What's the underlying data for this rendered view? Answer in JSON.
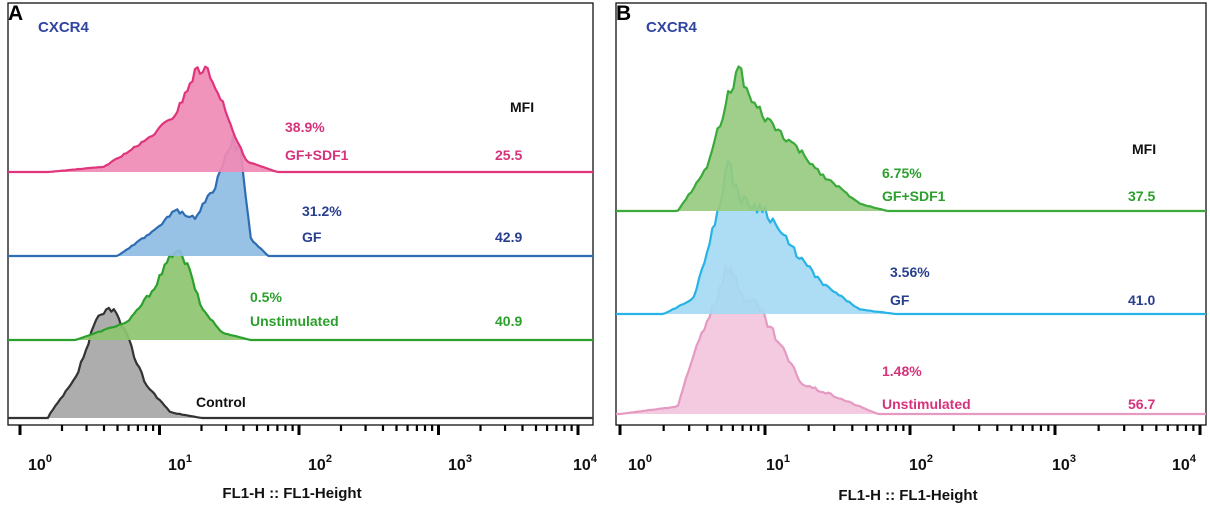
{
  "chart_data": [
    {
      "panel_letter": "A",
      "title": "CXCR4",
      "type": "area",
      "xlabel": "FL1-H :: FL1-Height",
      "xscale": "log",
      "xlim": [
        1,
        10000
      ],
      "x_tick_labels": [
        {
          "base": "10",
          "exp": "0"
        },
        {
          "base": "10",
          "exp": "1"
        },
        {
          "base": "10",
          "exp": "2"
        },
        {
          "base": "10",
          "exp": "3"
        },
        {
          "base": "10",
          "exp": "4"
        }
      ],
      "mfi_header": "MFI",
      "series": [
        {
          "name": "Control",
          "label": "Control",
          "percent": "",
          "mfi": "",
          "fill": "#a6a6a6",
          "stroke": "#333333",
          "label_color": "#111111",
          "peak_x": 4.5,
          "profile_x": [
            1.6,
            2.5,
            3.5,
            4.5,
            5.5,
            8,
            12,
            20
          ],
          "profile_y": [
            0.02,
            0.35,
            0.85,
            1.0,
            0.8,
            0.3,
            0.05,
            0.0
          ]
        },
        {
          "name": "Unstimulated",
          "label": "Unstimulated",
          "percent": "0.5%",
          "mfi": "40.9",
          "fill": "#8dc66f",
          "stroke": "#2ca02c",
          "label_color": "#2ca02c",
          "peak_x": 13,
          "profile_x": [
            2.5,
            6,
            9,
            13,
            16,
            20,
            28,
            45
          ],
          "profile_y": [
            0.0,
            0.2,
            0.55,
            1.0,
            0.8,
            0.35,
            0.08,
            0.0
          ]
        },
        {
          "name": "GF",
          "label": "GF",
          "percent": "31.2%",
          "mfi": "42.9",
          "fill": "#8fbde3",
          "stroke": "#2e6db4",
          "label_color": "#283e8f",
          "peak_x": 33,
          "profile_x": [
            5,
            10,
            13,
            18,
            25,
            33,
            38,
            45,
            60
          ],
          "profile_y": [
            0.0,
            0.25,
            0.4,
            0.33,
            0.6,
            1.0,
            0.9,
            0.15,
            0.0
          ]
        },
        {
          "name": "GF+SDF1",
          "label": "GF+SDF1",
          "percent": "38.9%",
          "mfi": "25.5",
          "fill": "#f08bb6",
          "stroke": "#e0357b",
          "label_color": "#d6337a",
          "peak_x": 20,
          "profile_x": [
            1.6,
            4,
            8,
            13,
            18,
            21,
            26,
            32,
            42,
            70
          ],
          "profile_y": [
            0.0,
            0.05,
            0.3,
            0.55,
            0.95,
            1.0,
            0.8,
            0.45,
            0.1,
            0.0
          ]
        }
      ]
    },
    {
      "panel_letter": "B",
      "title": "CXCR4",
      "type": "area",
      "xlabel": "FL1-H :: FL1-Height",
      "xscale": "log",
      "xlim": [
        1,
        10000
      ],
      "x_tick_labels": [
        {
          "base": "10",
          "exp": "0"
        },
        {
          "base": "10",
          "exp": "1"
        },
        {
          "base": "10",
          "exp": "2"
        },
        {
          "base": "10",
          "exp": "3"
        },
        {
          "base": "10",
          "exp": "4"
        }
      ],
      "mfi_header": "MFI",
      "series": [
        {
          "name": "Unstimulated",
          "label": "Unstimulated",
          "percent": "1.48%",
          "mfi": "56.7",
          "fill": "#f2c6dc",
          "stroke": "#e59ac2",
          "label_color": "#d6337a",
          "peak_x": 5.5,
          "profile_x": [
            1.0,
            2.5,
            3.5,
            4.5,
            5.5,
            7,
            9,
            12,
            18,
            30,
            60
          ],
          "profile_y": [
            0.0,
            0.05,
            0.5,
            0.75,
            1.0,
            0.8,
            0.7,
            0.5,
            0.2,
            0.12,
            0.0
          ]
        },
        {
          "name": "GF",
          "label": "GF",
          "percent": "3.56%",
          "mfi": "41.0",
          "fill": "#a5daf3",
          "stroke": "#27b3e6",
          "label_color": "#283e8f",
          "peak_x": 5.5,
          "profile_x": [
            2.0,
            3.2,
            4.5,
            5.5,
            7,
            10,
            15,
            25,
            45,
            80
          ],
          "profile_y": [
            0.0,
            0.1,
            0.6,
            1.0,
            0.75,
            0.7,
            0.45,
            0.2,
            0.03,
            0.0
          ]
        },
        {
          "name": "GF+SDF1",
          "label": "GF+SDF1",
          "percent": "6.75%",
          "mfi": "37.5",
          "fill": "#97cb80",
          "stroke": "#3aaa3a",
          "label_color": "#2ca02c",
          "peak_x": 6.5,
          "profile_x": [
            2.5,
            4,
            5,
            6.5,
            8,
            11,
            16,
            25,
            45,
            70
          ],
          "profile_y": [
            0.0,
            0.3,
            0.65,
            1.0,
            0.75,
            0.6,
            0.45,
            0.25,
            0.05,
            0.0
          ]
        }
      ]
    }
  ]
}
